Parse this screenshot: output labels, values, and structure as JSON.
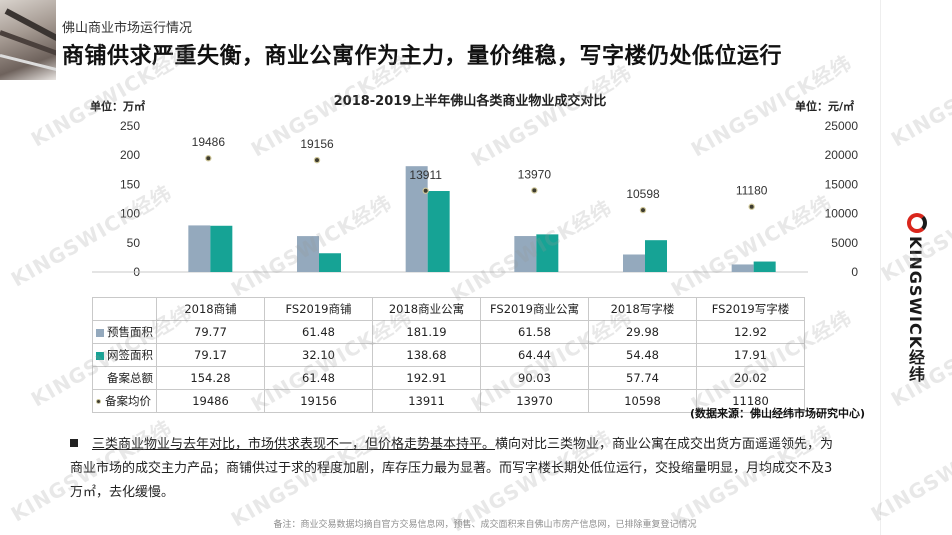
{
  "header": {
    "top_label": "佛山商业市场运行情况",
    "headline": "商铺供求严重失衡，商业公寓作为主力，量价维稳，写字楼仍处低位运行"
  },
  "brand": {
    "logo_text": "KINGSWICK经纬"
  },
  "chart_data": {
    "type": "bar",
    "title": "2018-2019上半年佛山各类商业物业成交对比",
    "unit_left": "单位：万㎡",
    "unit_right": "单位：元/㎡",
    "categories": [
      "2018商铺",
      "FS2019商铺",
      "2018商业公寓",
      "FS2019商业公寓",
      "2018写字楼",
      "FS2019写字楼"
    ],
    "series": [
      {
        "name": "预售面积",
        "kind": "bar",
        "axis": "left",
        "color": "#94a9bd",
        "values": [
          79.77,
          61.48,
          181.19,
          61.58,
          29.98,
          12.92
        ],
        "display": [
          "79.77",
          "61.48",
          "181.19",
          "61.58",
          "29.98",
          "12.92"
        ]
      },
      {
        "name": "网签面积",
        "kind": "bar",
        "axis": "left",
        "color": "#16a395",
        "values": [
          79.17,
          32.1,
          138.68,
          64.44,
          54.48,
          17.91
        ],
        "display": [
          "79.17",
          "32.10",
          "138.68",
          "64.44",
          "54.48",
          "17.91"
        ]
      },
      {
        "name": "备案总额",
        "kind": "none",
        "axis": "left",
        "color": "#ffffff",
        "values": [
          154.28,
          61.48,
          192.91,
          90.03,
          57.74,
          20.02
        ],
        "display": [
          "154.28",
          "61.48",
          "192.91",
          "90.03",
          "57.74",
          "20.02"
        ]
      },
      {
        "name": "备案均价",
        "kind": "dot",
        "axis": "right",
        "color": "#3d3b2e",
        "values": [
          19486,
          19156,
          13911,
          13970,
          10598,
          11180
        ],
        "display": [
          "19486",
          "19156",
          "13911",
          "13970",
          "10598",
          "11180"
        ]
      }
    ],
    "y_left": {
      "min": 0,
      "max": 250,
      "ticks": [
        "0",
        "50",
        "100",
        "150",
        "200",
        "250"
      ]
    },
    "y_right": {
      "min": 0,
      "max": 25000,
      "ticks": [
        "0",
        "5000",
        "10000",
        "15000",
        "20000",
        "25000"
      ]
    },
    "grid": false,
    "legend": "table"
  },
  "source_note": "(数据来源：佛山经纬市场研究中心)",
  "bullet": {
    "highlight": "三类商业物业与去年对比，市场供求表现不一，但价格走势基本持平。",
    "body": "横向对比三类物业，商业公寓在成交出货方面遥遥领先，为商业市场的成交主力产品；商铺供过于求的程度加剧，库存压力最为显著。而写字楼长期处低位运行，交投缩量明显，月均成交不及3万㎡，去化缓慢。"
  },
  "footnote": "备注：商业交易数据均摘自官方交易信息网，预售、成交面积来自佛山市房产信息网，已排除重复登记情况"
}
